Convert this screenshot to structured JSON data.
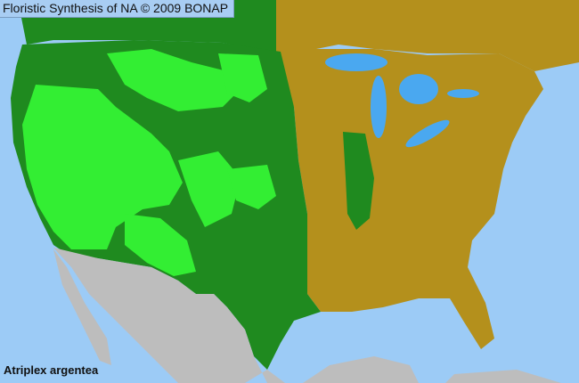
{
  "header": {
    "title": "Floristic Synthesis of NA © 2009 BONAP"
  },
  "map": {
    "species": "Atriplex argentea",
    "colors": {
      "ocean": "#9ccbf6",
      "present_state": "#1f8a1f",
      "present_county": "#33ee33",
      "absent": "#b4901c",
      "outside": "#bdbdbd",
      "lakes": "#4aa8f0"
    }
  }
}
